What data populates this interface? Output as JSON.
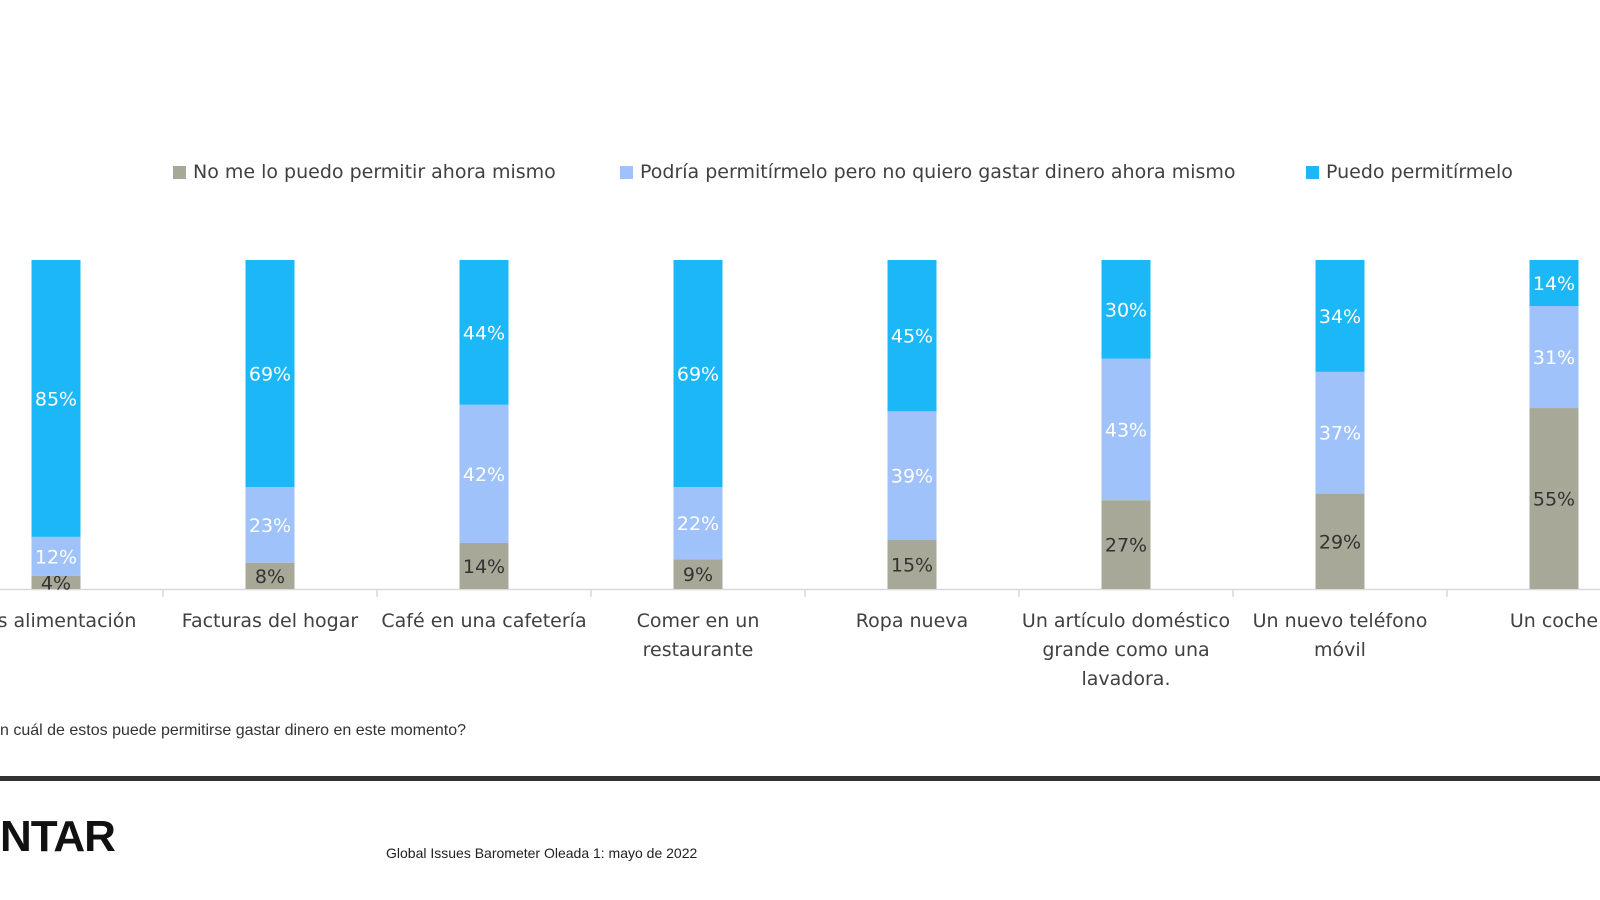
{
  "chart_data": {
    "type": "bar",
    "stacked": true,
    "categories": [
      [
        "cos alimentación"
      ],
      [
        "Facturas del hogar"
      ],
      [
        "Café en una cafetería"
      ],
      [
        "Comer en un",
        "restaurante"
      ],
      [
        "Ropa nueva"
      ],
      [
        "Un artículo doméstico",
        "grande como una",
        "lavadora."
      ],
      [
        "Un nuevo teléfono",
        "móvil"
      ],
      [
        "Un coche"
      ]
    ],
    "series": [
      {
        "name": "No me lo puedo permitir ahora mismo",
        "color": "#a8a898",
        "label_color": "#333333",
        "values": [
          4,
          8,
          14,
          9,
          15,
          27,
          29,
          55
        ]
      },
      {
        "name": "Podría permitírmelo pero no quiero gastar dinero ahora mismo",
        "color": "#9fc2fb",
        "label_color": "#ffffff",
        "values": [
          12,
          23,
          42,
          22,
          39,
          43,
          37,
          31
        ]
      },
      {
        "name": "Puedo permitírmelo",
        "color": "#1bb7f7",
        "label_color": "#ffffff",
        "values": [
          85,
          69,
          44,
          69,
          45,
          30,
          34,
          14
        ]
      }
    ],
    "value_suffix": "%",
    "ylim": [
      0,
      100
    ],
    "grid": false,
    "legend_position": "top"
  },
  "footnote": "n cuál de estos puede permitirse gastar dinero en este momento?",
  "logo": "NTAR",
  "source": "Global Issues Barometer Oleada 1: mayo de 2022"
}
